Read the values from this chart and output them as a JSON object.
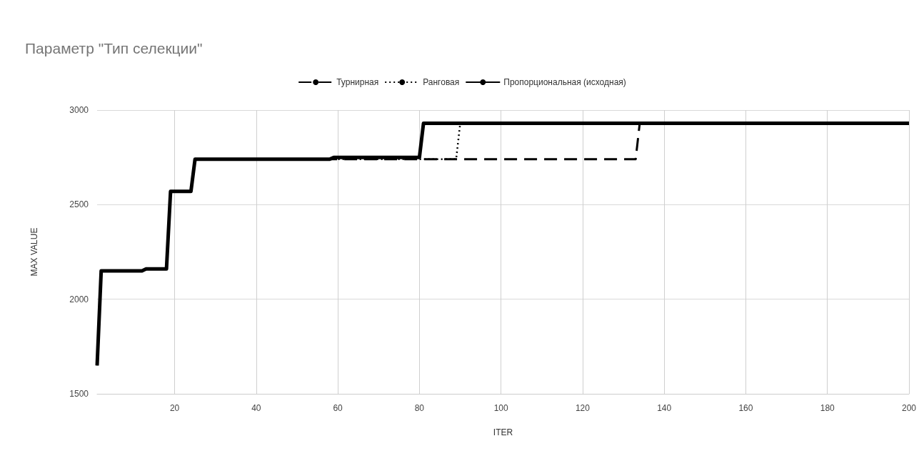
{
  "chart_data": {
    "type": "line",
    "title": "Параметр \"Тип селекции\"",
    "xlabel": "ITER",
    "ylabel": "MAX VALUE",
    "xlim": [
      1,
      200
    ],
    "xticks": [
      20,
      40,
      60,
      80,
      100,
      120,
      140,
      160,
      180,
      200
    ],
    "ylim": [
      1500,
      3000
    ],
    "yticks": [
      1500,
      2000,
      2500,
      3000
    ],
    "grid": true,
    "legend": "top",
    "marker": "none",
    "series": [
      {
        "name": "Турнирная",
        "color": "#000000",
        "line_style": "dashed",
        "x": [
          1,
          2,
          12,
          13,
          18,
          19,
          24,
          25,
          133,
          134,
          200
        ],
        "values": [
          1650,
          2150,
          2150,
          2160,
          2160,
          2570,
          2570,
          2740,
          2740,
          2930,
          2930
        ]
      },
      {
        "name": "Ранговая",
        "color": "#000000",
        "line_style": "dotted",
        "x": [
          58,
          89,
          90
        ],
        "values": [
          2740,
          2740,
          2930
        ]
      },
      {
        "name": "Пропорциональная (исходная)",
        "color": "#000000",
        "line_style": "solid",
        "x": [
          1,
          2,
          12,
          13,
          18,
          19,
          24,
          25,
          58,
          59,
          80,
          81,
          200
        ],
        "values": [
          1650,
          2150,
          2150,
          2160,
          2160,
          2570,
          2570,
          2740,
          2740,
          2750,
          2750,
          2930,
          2930
        ]
      }
    ]
  }
}
